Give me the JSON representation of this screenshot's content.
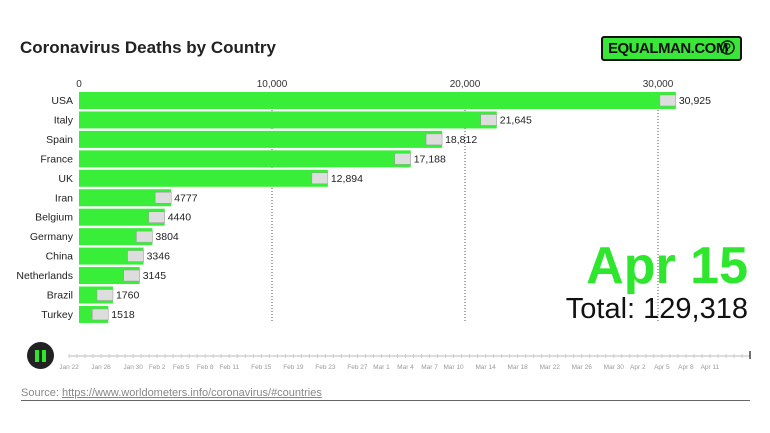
{
  "chart_data": {
    "type": "bar",
    "title": "Coronavirus Deaths by Country",
    "categories": [
      "USA",
      "Italy",
      "Spain",
      "France",
      "UK",
      "Iran",
      "Belgium",
      "Germany",
      "China",
      "Netherlands",
      "Brazil",
      "Turkey"
    ],
    "values": [
      30925,
      21645,
      18812,
      17188,
      12894,
      4777,
      4440,
      3804,
      3346,
      3145,
      1760,
      1518
    ],
    "value_labels": [
      "30,925",
      "21,645",
      "18,812",
      "17,188",
      "12,894",
      "4777",
      "4440",
      "3804",
      "3346",
      "3145",
      "1760",
      "1518"
    ],
    "xticks": [
      0,
      10000,
      20000,
      30000
    ],
    "xtick_labels": [
      "0",
      "10,000",
      "20,000",
      "30,000"
    ],
    "xlim": [
      0,
      35000
    ],
    "bar_color": "#39ee39"
  },
  "logo": "EQUALMAN.COM",
  "date": "Apr 15",
  "total": "Total: 129,318",
  "timeline": {
    "labels": [
      "Jan 22",
      "Jan 26",
      "Jan 30",
      "Feb 2",
      "Feb 5",
      "Feb 8",
      "Feb 11",
      "Feb 15",
      "Feb 19",
      "Feb 23",
      "Feb 27",
      "Mar 1",
      "Mar 4",
      "Mar 7",
      "Mar 10",
      "Mar 14",
      "Mar 18",
      "Mar 22",
      "Mar 26",
      "Mar 30",
      "Apr 2",
      "Apr 5",
      "Apr 8",
      "Apr 11"
    ],
    "days": [
      0,
      4,
      8,
      11,
      14,
      17,
      20,
      24,
      28,
      32,
      36,
      39,
      42,
      45,
      48,
      52,
      56,
      60,
      64,
      68,
      71,
      74,
      77,
      80
    ],
    "total_days": 85,
    "progress": 1.0
  },
  "source_label": "Source:",
  "source_url": "https://www.worldometers.info/coronavirus/#countries"
}
